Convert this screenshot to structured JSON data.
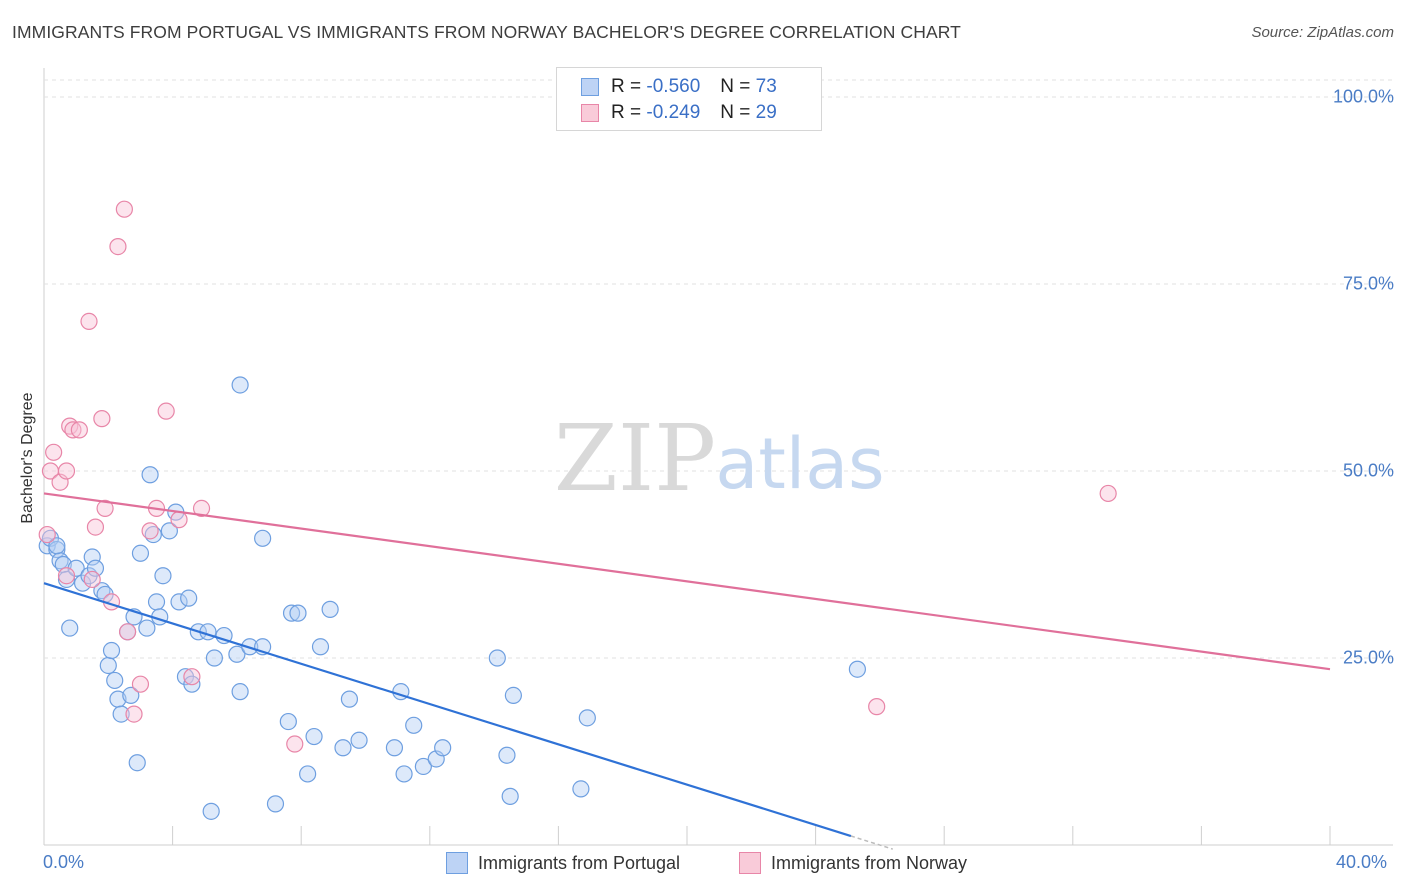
{
  "title": "IMMIGRANTS FROM PORTUGAL VS IMMIGRANTS FROM NORWAY BACHELOR'S DEGREE CORRELATION CHART",
  "source": "Source: ZipAtlas.com",
  "watermark": {
    "zip": "ZIP",
    "atlas": "atlas"
  },
  "stats": [
    {
      "r_label": "R =",
      "r_value": "-0.560",
      "n_label": "N =",
      "n_value": "73",
      "color": "#6e9fe0"
    },
    {
      "r_label": "R =",
      "r_value": "-0.249",
      "n_label": "N =",
      "n_value": "29",
      "color": "#e886a8"
    }
  ],
  "legend": [
    {
      "label": "Immigrants from Portugal",
      "color": "#6e9fe0"
    },
    {
      "label": "Immigrants from Norway",
      "color": "#e886a8"
    }
  ],
  "chart_data": {
    "type": "scatter",
    "xlabel": "",
    "ylabel": "Bachelor's Degree",
    "xlim": [
      0,
      40
    ],
    "ylim": [
      0,
      100
    ],
    "x_tick_labels": [
      "0.0%",
      "40.0%"
    ],
    "y_tick_labels": [
      "100.0%",
      "75.0%",
      "50.0%",
      "25.0%"
    ],
    "y_ticks": [
      100,
      75,
      50,
      25
    ],
    "grid": true,
    "series": [
      {
        "name": "Immigrants from Portugal",
        "color": "#6e9fe0",
        "trend": {
          "x": [
            0,
            25.1
          ],
          "y": [
            35,
            1.2
          ]
        },
        "points": [
          [
            0.1,
            40
          ],
          [
            0.2,
            41
          ],
          [
            0.4,
            39.5
          ],
          [
            0.5,
            38
          ],
          [
            0.6,
            37.5
          ],
          [
            0.7,
            35.5
          ],
          [
            0.8,
            29
          ],
          [
            1,
            37
          ],
          [
            1.2,
            35
          ],
          [
            1.4,
            36
          ],
          [
            1.5,
            38.5
          ],
          [
            1.6,
            37
          ],
          [
            1.8,
            34
          ],
          [
            1.9,
            33.5
          ],
          [
            2.0,
            24
          ],
          [
            2.1,
            26
          ],
          [
            2.2,
            22
          ],
          [
            2.3,
            19.5
          ],
          [
            2.4,
            17.5
          ],
          [
            2.6,
            28.5
          ],
          [
            2.7,
            20
          ],
          [
            2.8,
            30.5
          ],
          [
            2.9,
            11
          ],
          [
            3.0,
            39
          ],
          [
            3.2,
            29
          ],
          [
            3.4,
            41.5
          ],
          [
            3.5,
            32.5
          ],
          [
            3.6,
            30.5
          ],
          [
            3.7,
            36
          ],
          [
            3.9,
            42
          ],
          [
            4.1,
            44.5
          ],
          [
            4.2,
            32.5
          ],
          [
            4.4,
            22.5
          ],
          [
            4.6,
            21.5
          ],
          [
            4.8,
            28.5
          ],
          [
            5.2,
            4.5
          ],
          [
            5.3,
            25
          ],
          [
            5.6,
            28
          ],
          [
            6.0,
            25.5
          ],
          [
            6.1,
            20.5
          ],
          [
            6.4,
            26.5
          ],
          [
            6.8,
            26.5
          ],
          [
            7.2,
            5.5
          ],
          [
            7.6,
            16.5
          ],
          [
            7.7,
            31
          ],
          [
            7.9,
            31
          ],
          [
            8.2,
            9.5
          ],
          [
            8.4,
            14.5
          ],
          [
            8.6,
            26.5
          ],
          [
            8.9,
            31.5
          ],
          [
            9.3,
            13
          ],
          [
            9.5,
            19.5
          ],
          [
            9.8,
            14
          ],
          [
            10.9,
            13
          ],
          [
            11.1,
            20.5
          ],
          [
            11.2,
            9.5
          ],
          [
            11.5,
            16
          ],
          [
            11.8,
            10.5
          ],
          [
            12.2,
            11.5
          ],
          [
            12.4,
            13
          ],
          [
            14.1,
            25
          ],
          [
            14.4,
            12
          ],
          [
            14.5,
            6.5
          ],
          [
            14.6,
            20
          ],
          [
            16.7,
            7.5
          ],
          [
            16.9,
            17
          ],
          [
            3.3,
            49.5
          ],
          [
            4.5,
            33
          ],
          [
            5.1,
            28.5
          ],
          [
            6.8,
            41
          ],
          [
            6.1,
            61.5
          ],
          [
            0.4,
            40
          ],
          [
            25.3,
            23.5
          ]
        ]
      },
      {
        "name": "Immigrants from Norway",
        "color": "#e886a8",
        "trend": {
          "x": [
            0,
            40
          ],
          "y": [
            47,
            23.5
          ]
        },
        "points": [
          [
            0.1,
            41.5
          ],
          [
            0.2,
            50
          ],
          [
            0.3,
            52.5
          ],
          [
            0.5,
            48.5
          ],
          [
            0.7,
            50
          ],
          [
            0.8,
            56
          ],
          [
            0.9,
            55.5
          ],
          [
            1.1,
            55.5
          ],
          [
            1.4,
            70
          ],
          [
            1.6,
            42.5
          ],
          [
            1.8,
            57
          ],
          [
            1.9,
            45
          ],
          [
            2.1,
            32.5
          ],
          [
            2.3,
            80
          ],
          [
            2.6,
            28.5
          ],
          [
            2.8,
            17.5
          ],
          [
            3.0,
            21.5
          ],
          [
            3.3,
            42
          ],
          [
            3.5,
            45
          ],
          [
            3.8,
            58
          ],
          [
            4.2,
            43.5
          ],
          [
            4.6,
            22.5
          ],
          [
            4.9,
            45
          ],
          [
            2.5,
            85
          ],
          [
            0.7,
            36
          ],
          [
            1.5,
            35.5
          ],
          [
            7.8,
            13.5
          ],
          [
            33.1,
            47
          ],
          [
            25.9,
            18.5
          ]
        ]
      }
    ]
  }
}
